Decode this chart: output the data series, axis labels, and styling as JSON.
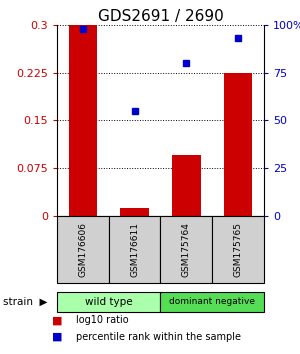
{
  "title": "GDS2691 / 2690",
  "categories": [
    "GSM176606",
    "GSM176611",
    "GSM175764",
    "GSM175765"
  ],
  "bar_values": [
    0.3,
    0.012,
    0.095,
    0.225
  ],
  "percentile_values": [
    98,
    55,
    80,
    93
  ],
  "bar_color": "#cc0000",
  "percentile_color": "#0000cc",
  "ylim_left": [
    0,
    0.3
  ],
  "ylim_right": [
    0,
    100
  ],
  "yticks_left": [
    0,
    0.075,
    0.15,
    0.225,
    0.3
  ],
  "yticks_right": [
    0,
    25,
    50,
    75,
    100
  ],
  "ytick_labels_left": [
    "0",
    "0.075",
    "0.15",
    "0.225",
    "0.3"
  ],
  "ytick_labels_right": [
    "0",
    "25",
    "50",
    "75",
    "100%"
  ],
  "groups": [
    {
      "label": "wild type",
      "indices": [
        0,
        1
      ],
      "color": "#aaffaa"
    },
    {
      "label": "dominant negative",
      "indices": [
        2,
        3
      ],
      "color": "#55dd55"
    }
  ],
  "strain_label": "strain",
  "legend_bar_label": "log10 ratio",
  "legend_pct_label": "percentile rank within the sample",
  "bg_color": "#ffffff",
  "bar_width": 0.55,
  "title_fontsize": 11,
  "tick_fontsize": 8,
  "label_fontsize": 8,
  "sample_box_color": "#d0d0d0"
}
